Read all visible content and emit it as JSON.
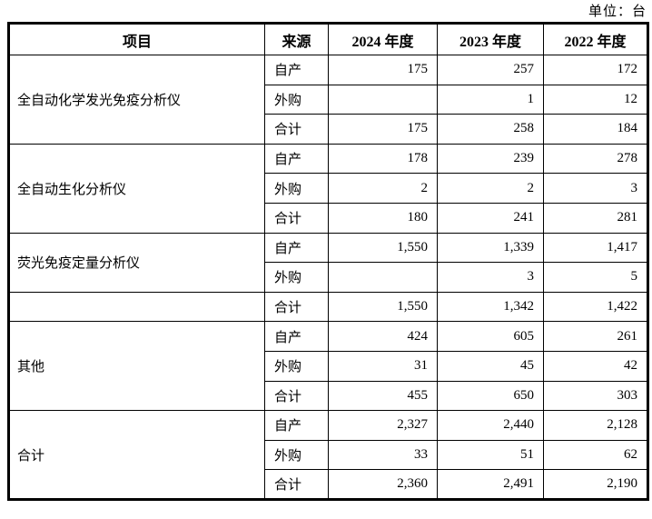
{
  "unit_label": "单位：台",
  "colors": {
    "border": "#000000",
    "text": "#000000",
    "background": "#ffffff"
  },
  "table": {
    "headers": [
      {
        "label": "项目"
      },
      {
        "label": "来源"
      },
      {
        "label": "2024 年度"
      },
      {
        "label": "2023 年度"
      },
      {
        "label": "2022 年度"
      }
    ],
    "groups": [
      {
        "item_cells": [
          {
            "label": "全自动化学发光免疫分析仪",
            "rowspan": 3
          }
        ],
        "rows": [
          {
            "source": "自产",
            "values": [
              "175",
              "257",
              "172"
            ]
          },
          {
            "source": "外购",
            "values": [
              "",
              "1",
              "12"
            ]
          },
          {
            "source": "合计",
            "values": [
              "175",
              "258",
              "184"
            ]
          }
        ]
      },
      {
        "item_cells": [
          {
            "label": "全自动生化分析仪",
            "rowspan": 3
          }
        ],
        "rows": [
          {
            "source": "自产",
            "values": [
              "178",
              "239",
              "278"
            ]
          },
          {
            "source": "外购",
            "values": [
              "2",
              "2",
              "3"
            ]
          },
          {
            "source": "合计",
            "values": [
              "180",
              "241",
              "281"
            ]
          }
        ]
      },
      {
        "item_cells": [
          {
            "label": "荧光免疫定量分析仪",
            "rowspan": 2
          },
          {
            "label": "",
            "rowspan": 1
          }
        ],
        "rows": [
          {
            "source": "自产",
            "values": [
              "1,550",
              "1,339",
              "1,417"
            ]
          },
          {
            "source": "外购",
            "values": [
              "",
              "3",
              "5"
            ]
          },
          {
            "source": "合计",
            "values": [
              "1,550",
              "1,342",
              "1,422"
            ]
          }
        ]
      },
      {
        "item_cells": [
          {
            "label": "其他",
            "rowspan": 3
          }
        ],
        "rows": [
          {
            "source": "自产",
            "values": [
              "424",
              "605",
              "261"
            ]
          },
          {
            "source": "外购",
            "values": [
              "31",
              "45",
              "42"
            ]
          },
          {
            "source": "合计",
            "values": [
              "455",
              "650",
              "303"
            ]
          }
        ]
      },
      {
        "item_cells": [
          {
            "label": "合计",
            "rowspan": 3
          }
        ],
        "rows": [
          {
            "source": "自产",
            "values": [
              "2,327",
              "2,440",
              "2,128"
            ]
          },
          {
            "source": "外购",
            "values": [
              "33",
              "51",
              "62"
            ]
          },
          {
            "source": "合计",
            "values": [
              "2,360",
              "2,491",
              "2,190"
            ]
          }
        ]
      }
    ]
  }
}
